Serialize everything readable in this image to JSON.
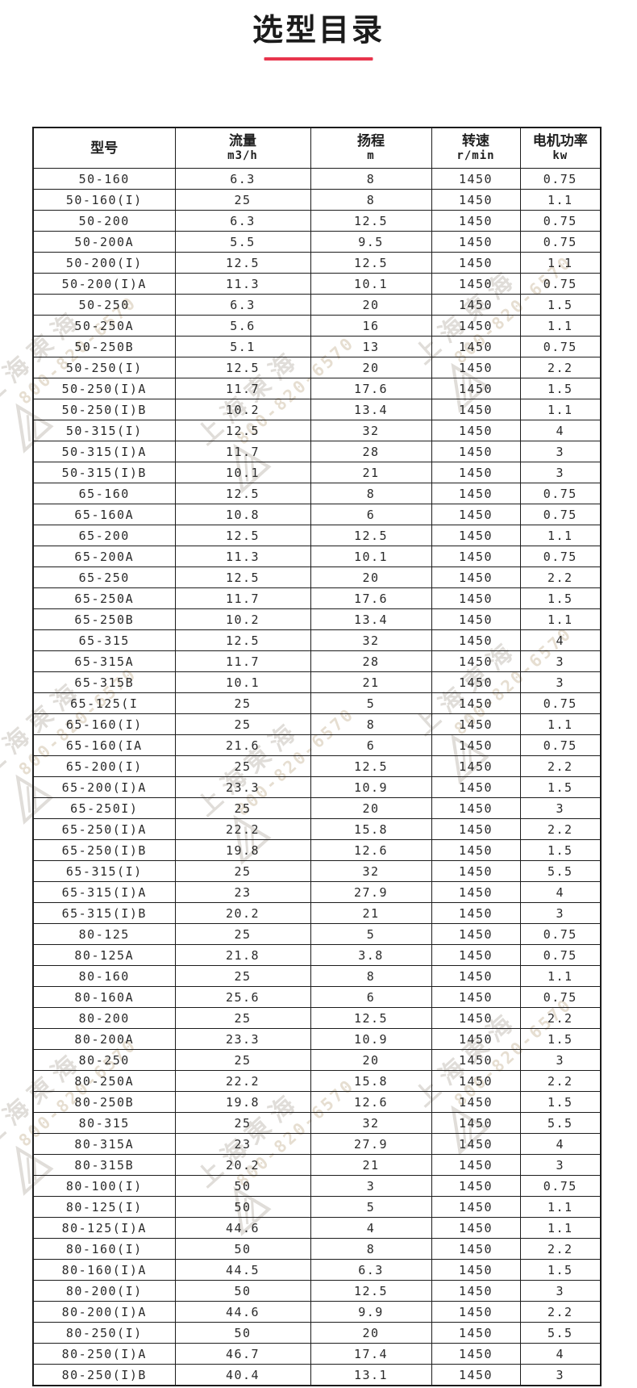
{
  "page": {
    "title": "选型目录"
  },
  "colors": {
    "accent_red": "#e8354d",
    "table_border": "#1c1c1c",
    "text": "#2a2a2a",
    "watermark_gray": "#c7c3bb",
    "watermark_tan": "#d2c4ac"
  },
  "watermark": {
    "company": "上海東海",
    "phone": "800-820-6570",
    "registered": "®"
  },
  "table": {
    "columns": [
      {
        "label": "型号",
        "unit": ""
      },
      {
        "label": "流量",
        "unit": "m3/h"
      },
      {
        "label": "扬程",
        "unit": "m"
      },
      {
        "label": "转速",
        "unit": "r/min"
      },
      {
        "label": "电机功率",
        "unit": "kw"
      }
    ],
    "rows": [
      [
        "50-160",
        "6.3",
        "8",
        "1450",
        "0.75"
      ],
      [
        "50-160(I)",
        "25",
        "8",
        "1450",
        "1.1"
      ],
      [
        "50-200",
        "6.3",
        "12.5",
        "1450",
        "0.75"
      ],
      [
        "50-200A",
        "5.5",
        "9.5",
        "1450",
        "0.75"
      ],
      [
        "50-200(I)",
        "12.5",
        "12.5",
        "1450",
        "1.1"
      ],
      [
        "50-200(I)A",
        "11.3",
        "10.1",
        "1450",
        "0.75"
      ],
      [
        "50-250",
        "6.3",
        "20",
        "1450",
        "1.5"
      ],
      [
        "50-250A",
        "5.6",
        "16",
        "1450",
        "1.1"
      ],
      [
        "50-250B",
        "5.1",
        "13",
        "1450",
        "0.75"
      ],
      [
        "50-250(I)",
        "12.5",
        "20",
        "1450",
        "2.2"
      ],
      [
        "50-250(I)A",
        "11.7",
        "17.6",
        "1450",
        "1.5"
      ],
      [
        "50-250(I)B",
        "10.2",
        "13.4",
        "1450",
        "1.1"
      ],
      [
        "50-315(I)",
        "12.5",
        "32",
        "1450",
        "4"
      ],
      [
        "50-315(I)A",
        "11.7",
        "28",
        "1450",
        "3"
      ],
      [
        "50-315(I)B",
        "10.1",
        "21",
        "1450",
        "3"
      ],
      [
        "65-160",
        "12.5",
        "8",
        "1450",
        "0.75"
      ],
      [
        "65-160A",
        "10.8",
        "6",
        "1450",
        "0.75"
      ],
      [
        "65-200",
        "12.5",
        "12.5",
        "1450",
        "1.1"
      ],
      [
        "65-200A",
        "11.3",
        "10.1",
        "1450",
        "0.75"
      ],
      [
        "65-250",
        "12.5",
        "20",
        "1450",
        "2.2"
      ],
      [
        "65-250A",
        "11.7",
        "17.6",
        "1450",
        "1.5"
      ],
      [
        "65-250B",
        "10.2",
        "13.4",
        "1450",
        "1.1"
      ],
      [
        "65-315",
        "12.5",
        "32",
        "1450",
        "4"
      ],
      [
        "65-315A",
        "11.7",
        "28",
        "1450",
        "3"
      ],
      [
        "65-315B",
        "10.1",
        "21",
        "1450",
        "3"
      ],
      [
        "65-125(I",
        "25",
        "5",
        "1450",
        "0.75"
      ],
      [
        "65-160(I)",
        "25",
        "8",
        "1450",
        "1.1"
      ],
      [
        "65-160(IA",
        "21.6",
        "6",
        "1450",
        "0.75"
      ],
      [
        "65-200(I)",
        "25",
        "12.5",
        "1450",
        "2.2"
      ],
      [
        "65-200(I)A",
        "23.3",
        "10.9",
        "1450",
        "1.5"
      ],
      [
        "65-250I)",
        "25",
        "20",
        "1450",
        "3"
      ],
      [
        "65-250(I)A",
        "22.2",
        "15.8",
        "1450",
        "2.2"
      ],
      [
        "65-250(I)B",
        "19.8",
        "12.6",
        "1450",
        "1.5"
      ],
      [
        "65-315(I)",
        "25",
        "32",
        "1450",
        "5.5"
      ],
      [
        "65-315(I)A",
        "23",
        "27.9",
        "1450",
        "4"
      ],
      [
        "65-315(I)B",
        "20.2",
        "21",
        "1450",
        "3"
      ],
      [
        "80-125",
        "25",
        "5",
        "1450",
        "0.75"
      ],
      [
        "80-125A",
        "21.8",
        "3.8",
        "1450",
        "0.75"
      ],
      [
        "80-160",
        "25",
        "8",
        "1450",
        "1.1"
      ],
      [
        "80-160A",
        "25.6",
        "6",
        "1450",
        "0.75"
      ],
      [
        "80-200",
        "25",
        "12.5",
        "1450",
        "2.2"
      ],
      [
        "80-200A",
        "23.3",
        "10.9",
        "1450",
        "1.5"
      ],
      [
        "80-250",
        "25",
        "20",
        "1450",
        "3"
      ],
      [
        "80-250A",
        "22.2",
        "15.8",
        "1450",
        "2.2"
      ],
      [
        "80-250B",
        "19.8",
        "12.6",
        "1450",
        "1.5"
      ],
      [
        "80-315",
        "25",
        "32",
        "1450",
        "5.5"
      ],
      [
        "80-315A",
        "23",
        "27.9",
        "1450",
        "4"
      ],
      [
        "80-315B",
        "20.2",
        "21",
        "1450",
        "3"
      ],
      [
        "80-100(I)",
        "50",
        "3",
        "1450",
        "0.75"
      ],
      [
        "80-125(I)",
        "50",
        "5",
        "1450",
        "1.1"
      ],
      [
        "80-125(I)A",
        "44.6",
        "4",
        "1450",
        "1.1"
      ],
      [
        "80-160(I)",
        "50",
        "8",
        "1450",
        "2.2"
      ],
      [
        "80-160(I)A",
        "44.5",
        "6.3",
        "1450",
        "1.5"
      ],
      [
        "80-200(I)",
        "50",
        "12.5",
        "1450",
        "3"
      ],
      [
        "80-200(I)A",
        "44.6",
        "9.9",
        "1450",
        "2.2"
      ],
      [
        "80-250(I)",
        "50",
        "20",
        "1450",
        "5.5"
      ],
      [
        "80-250(I)A",
        "46.7",
        "17.4",
        "1450",
        "4"
      ],
      [
        "80-250(I)B",
        "40.4",
        "13.1",
        "1450",
        "3"
      ]
    ]
  }
}
